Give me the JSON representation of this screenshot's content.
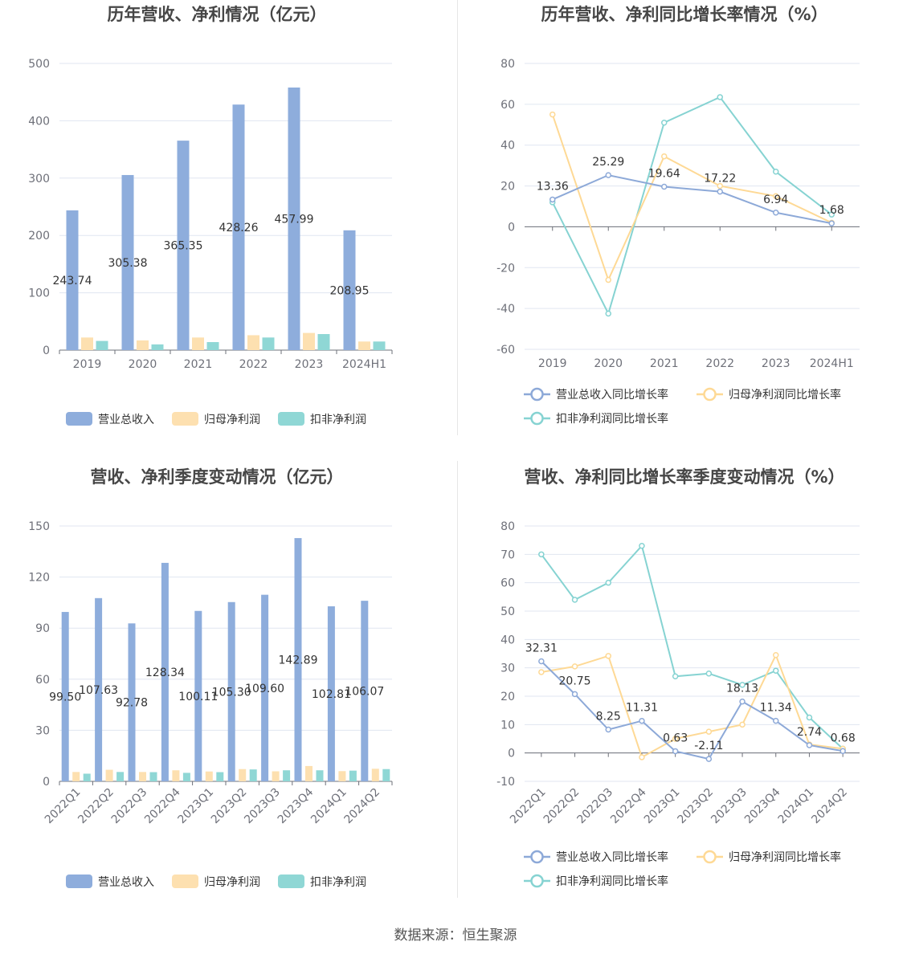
{
  "source_label": "数据来源：恒生聚源",
  "colors": {
    "revenue": "#8eaddc",
    "netprofit": "#fde0b0",
    "deducted": "#8fd7d5",
    "rev_line": "#8da9d8",
    "np_line": "#fed995",
    "ded_line": "#86d3d2"
  },
  "chart_data": [
    {
      "type": "bar",
      "title": "历年营收、净利情况（亿元）",
      "categories": [
        "2019",
        "2020",
        "2021",
        "2022",
        "2023",
        "2024H1"
      ],
      "ylim": [
        0,
        500
      ],
      "yticks": [
        0,
        100,
        200,
        300,
        400,
        500
      ],
      "series": [
        {
          "name": "营业总收入",
          "values": [
            243.74,
            305.38,
            365.35,
            428.26,
            457.99,
            208.95
          ],
          "labels": [
            "243.74",
            "305.38",
            "365.35",
            "428.26",
            "457.99",
            "208.95"
          ]
        },
        {
          "name": "归母净利润",
          "values": [
            22,
            17,
            22,
            26,
            30,
            15
          ]
        },
        {
          "name": "扣非净利润",
          "values": [
            16,
            10,
            14,
            22,
            28,
            15
          ]
        }
      ]
    },
    {
      "type": "line",
      "title": "历年营收、净利同比增长率情况（%）",
      "categories": [
        "2019",
        "2020",
        "2021",
        "2022",
        "2023",
        "2024H1"
      ],
      "ylim": [
        -60,
        80
      ],
      "yticks": [
        -60,
        -40,
        -20,
        0,
        20,
        40,
        60,
        80
      ],
      "series": [
        {
          "name": "营业总收入同比增长率",
          "values": [
            13.36,
            25.29,
            19.64,
            17.22,
            6.94,
            1.68
          ],
          "labels": [
            "13.36",
            "25.29",
            "19.64",
            "17.22",
            "6.94",
            "1.68"
          ]
        },
        {
          "name": "归母净利润同比增长率",
          "values": [
            55,
            -26,
            34.5,
            20,
            15,
            2
          ]
        },
        {
          "name": "扣非净利润同比增长率",
          "values": [
            12,
            -42.5,
            51,
            63.5,
            27,
            6
          ]
        }
      ]
    },
    {
      "type": "bar",
      "title": "营收、净利季度变动情况（亿元）",
      "categories": [
        "2022Q1",
        "2022Q2",
        "2022Q3",
        "2022Q4",
        "2023Q1",
        "2023Q2",
        "2023Q3",
        "2023Q4",
        "2024Q1",
        "2024Q2"
      ],
      "ylim": [
        0,
        150
      ],
      "yticks": [
        0,
        30,
        60,
        90,
        120,
        150
      ],
      "series": [
        {
          "name": "营业总收入",
          "values": [
            99.5,
            107.63,
            92.78,
            128.34,
            100.11,
            105.3,
            109.6,
            142.89,
            102.81,
            106.07
          ],
          "labels": [
            "99.50",
            "107.63",
            "92.78",
            "128.34",
            "100.11",
            "105.30",
            "109.60",
            "142.89",
            "102.81",
            "106.07"
          ]
        },
        {
          "name": "归母净利润",
          "values": [
            5.5,
            6.8,
            5.5,
            6.5,
            5.8,
            7.2,
            5.9,
            9.0,
            6.0,
            7.4
          ]
        },
        {
          "name": "扣非净利润",
          "values": [
            4.5,
            5.5,
            5.4,
            5.0,
            5.4,
            7.0,
            6.5,
            6.5,
            6.3,
            7.2
          ]
        }
      ]
    },
    {
      "type": "line",
      "title": "营收、净利同比增长率季度变动情况（%）",
      "categories": [
        "2022Q1",
        "2022Q2",
        "2022Q3",
        "2022Q4",
        "2023Q1",
        "2023Q2",
        "2023Q3",
        "2023Q4",
        "2024Q1",
        "2024Q2"
      ],
      "ylim": [
        -10,
        80
      ],
      "yticks": [
        -10,
        0,
        10,
        20,
        30,
        40,
        50,
        60,
        70,
        80
      ],
      "series": [
        {
          "name": "营业总收入同比增长率",
          "values": [
            32.31,
            20.75,
            8.25,
            11.31,
            0.63,
            -2.11,
            18.13,
            11.34,
            2.74,
            0.68
          ],
          "labels": [
            "32.31",
            "20.75",
            "8.25",
            "11.31",
            "0.63",
            "-2.11",
            "18.13",
            "11.34",
            "2.74",
            "0.68"
          ]
        },
        {
          "name": "归母净利润同比增长率",
          "values": [
            28.5,
            30.5,
            34.2,
            -1.5,
            5,
            7.5,
            10,
            34.5,
            3,
            1.5
          ]
        },
        {
          "name": "扣非净利润同比增长率",
          "values": [
            70,
            54,
            60,
            73,
            27,
            28,
            24,
            29,
            12.5,
            1.5
          ]
        }
      ]
    }
  ]
}
